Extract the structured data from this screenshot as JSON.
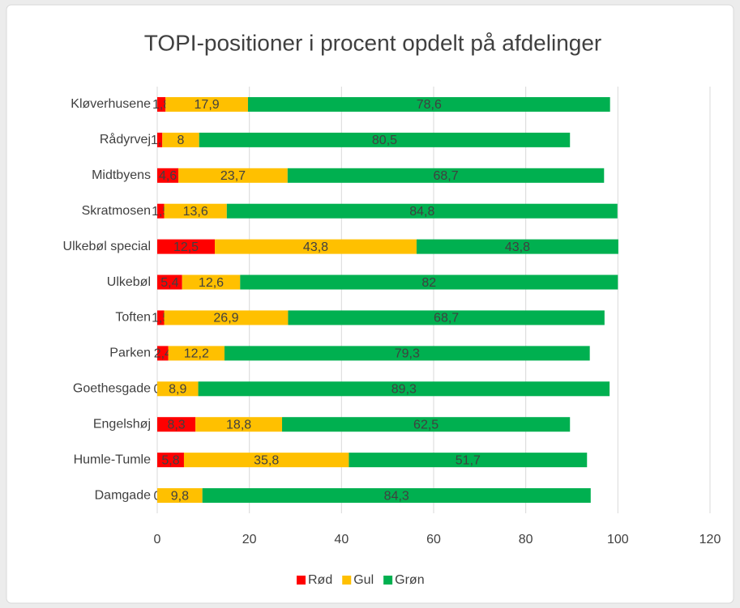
{
  "chart_data": {
    "type": "stacked-bar-horizontal",
    "title": "TOPI-positioner i procent opdelt på afdelinger",
    "categories": [
      "Kløverhusene",
      "Rådyrvej",
      "Midtbyens",
      "Skratmosen",
      "Ulkebøl special",
      "Ulkebøl",
      "Toften",
      "Parken",
      "Goethesgade",
      "Engelshøj",
      "Humle-Tumle",
      "Damgade"
    ],
    "series": [
      {
        "name": "Rød",
        "color": "#ff0000",
        "values": [
          1.8,
          1.1,
          4.6,
          1.5,
          12.5,
          5.4,
          1.5,
          2.4,
          0,
          8.3,
          5.8,
          0
        ],
        "value_labels": [
          "1,8",
          "1,1",
          "4,6",
          "1,5",
          "12,5",
          "5,4",
          "1,5",
          "2,4",
          "0",
          "8,3",
          "5,8",
          "0"
        ]
      },
      {
        "name": "Gul",
        "color": "#ffc000",
        "values": [
          17.9,
          8,
          23.7,
          13.6,
          43.8,
          12.6,
          26.9,
          12.2,
          8.9,
          18.8,
          35.8,
          9.8
        ],
        "value_labels": [
          "17,9",
          "8",
          "23,7",
          "13,6",
          "43,8",
          "12,6",
          "26,9",
          "12,2",
          "8,9",
          "18,8",
          "35,8",
          "9,8"
        ]
      },
      {
        "name": "Grøn",
        "color": "#00b050",
        "values": [
          78.6,
          80.5,
          68.7,
          84.8,
          43.8,
          82,
          68.7,
          79.3,
          89.3,
          62.5,
          51.7,
          84.3
        ],
        "value_labels": [
          "78,6",
          "80,5",
          "68,7",
          "84,8",
          "43,8",
          "82",
          "68,7",
          "79,3",
          "89,3",
          "62,5",
          "51,7",
          "84,3"
        ]
      }
    ],
    "xlim": [
      0,
      120
    ],
    "xticks": [
      0,
      20,
      40,
      60,
      80,
      100,
      120
    ],
    "grid": true,
    "legend": "bottom"
  }
}
